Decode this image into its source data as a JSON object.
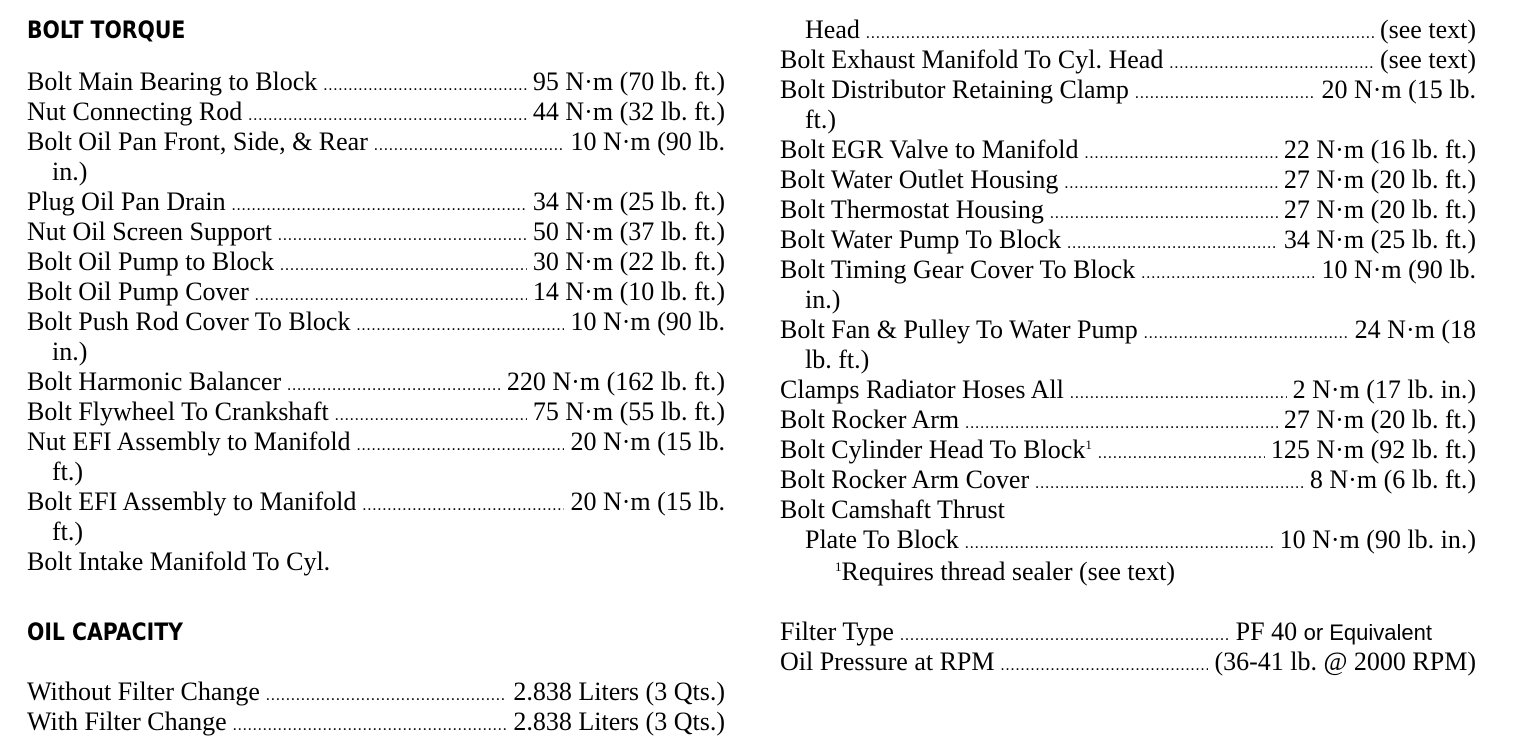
{
  "left": {
    "bolt_torque_heading": "BOLT TORQUE",
    "torque": [
      {
        "label": "Bolt Main Bearing to Block",
        "value": "95 N·m (70 lb. ft.)"
      },
      {
        "label": "Nut Connecting Rod",
        "value": "44 N·m (32 lb. ft.)"
      },
      {
        "label": "Bolt Oil Pan Front, Side, & Rear",
        "value": "10 N·m (90 lb.",
        "cont": "in.)"
      },
      {
        "label": "Plug Oil Pan Drain",
        "value": "34 N·m (25 lb. ft.)"
      },
      {
        "label": "Nut Oil Screen Support",
        "value": "50 N·m (37 lb. ft.)"
      },
      {
        "label": "Bolt Oil Pump to Block",
        "value": "30 N·m (22 lb. ft.)"
      },
      {
        "label": "Bolt Oil Pump Cover",
        "value": "14 N·m (10 lb. ft.)"
      },
      {
        "label": "Bolt Push Rod Cover To Block",
        "value": "10 N·m (90 lb.",
        "cont": "in.)"
      },
      {
        "label": "Bolt Harmonic Balancer",
        "value": "220 N·m (162 lb. ft.)"
      },
      {
        "label": "Bolt Flywheel To Crankshaft",
        "value": "75 N·m (55 lb. ft.)"
      },
      {
        "label": "Nut EFI Assembly to Manifold",
        "value": "20 N·m (15 lb.",
        "cont": "ft.)"
      },
      {
        "label": "Bolt EFI Assembly to Manifold",
        "value": "20 N·m (15 lb.",
        "cont": "ft.)"
      },
      {
        "label": "Bolt Intake Manifold To Cyl.",
        "value": ""
      }
    ],
    "oil_capacity_heading": "OIL CAPACITY",
    "capacity": [
      {
        "label": "Without Filter Change",
        "value": "2.838 Liters (3 Qts.)"
      },
      {
        "label": "With Filter Change",
        "value": "2.838 Liters (3 Qts.)"
      }
    ]
  },
  "right": {
    "torque": [
      {
        "label": "Head",
        "value": "(see text)",
        "indent": true
      },
      {
        "label": "Bolt Exhaust Manifold To Cyl. Head",
        "value": "(see text)"
      },
      {
        "label": "Bolt Distributor Retaining Clamp",
        "value": "20 N·m (15 lb.",
        "cont": "ft.)"
      },
      {
        "label": "Bolt EGR Valve to Manifold",
        "value": "22 N·m (16 lb. ft.)"
      },
      {
        "label": "Bolt Water Outlet Housing",
        "value": "27 N·m (20 lb. ft.)"
      },
      {
        "label": "Bolt Thermostat Housing",
        "value": "27 N·m (20 lb. ft.)"
      },
      {
        "label": "Bolt Water Pump To Block",
        "value": "34 N·m (25 lb. ft.)"
      },
      {
        "label": "Bolt Timing Gear Cover To Block",
        "value": "10 N·m (90 lb.",
        "cont": "in.)"
      },
      {
        "label": "Bolt Fan & Pulley To Water Pump",
        "value": "24 N·m (18",
        "cont": "lb. ft.)"
      },
      {
        "label": "Clamps Radiator Hoses All",
        "value": "2 N·m (17 lb. in.)"
      },
      {
        "label": "Bolt Rocker Arm",
        "value": "27 N·m (20 lb. ft.)"
      },
      {
        "label": "Bolt Cylinder Head To Block",
        "sup": "1",
        "value": "125 N·m (92 lb. ft.)"
      },
      {
        "label": "Bolt Rocker Arm Cover",
        "value": "8 N·m (6 lb. ft.)"
      },
      {
        "label": "Bolt Camshaft Thrust",
        "value": ""
      },
      {
        "label": "Plate To Block",
        "value": "10 N·m (90 lb. in.)",
        "indent": true
      }
    ],
    "footnote_mark": "1",
    "footnote": "Requires thread sealer (see text)",
    "filter_type_label": "Filter Type",
    "filter_type_value": "PF 40",
    "filter_type_suffix": "or Equivalent",
    "oil_pressure_label": "Oil Pressure at RPM",
    "oil_pressure_value": "(36-41 lb. @ 2000 RPM)"
  }
}
